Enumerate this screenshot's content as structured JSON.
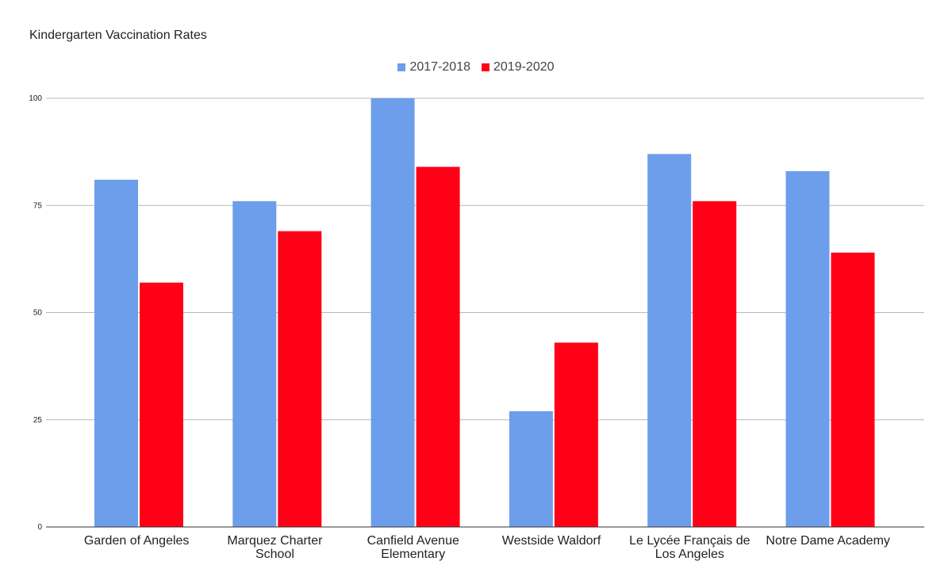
{
  "chart_data": {
    "type": "bar",
    "title": "Kindergarten Vaccination Rates",
    "xlabel": "",
    "ylabel": "",
    "ylim": [
      0,
      100
    ],
    "yticks": [
      "0",
      "25",
      "50",
      "75",
      "100"
    ],
    "grid": true,
    "legend_position": "top-center",
    "categories": [
      [
        "Garden of Angeles"
      ],
      [
        "Marquez Charter",
        "School"
      ],
      [
        "Canfield Avenue",
        "Elementary"
      ],
      [
        "Westside Waldorf"
      ],
      [
        "Le Lycée Français de",
        "Los Angeles"
      ],
      [
        "Notre Dame Academy"
      ]
    ],
    "series": [
      {
        "name": "2017-2018",
        "color": "#6d9eeb",
        "values": [
          81,
          76,
          100,
          27,
          87,
          83
        ]
      },
      {
        "name": "2019-2020",
        "color": "#ff0016",
        "values": [
          57,
          69,
          84,
          43,
          76,
          64
        ]
      }
    ]
  }
}
